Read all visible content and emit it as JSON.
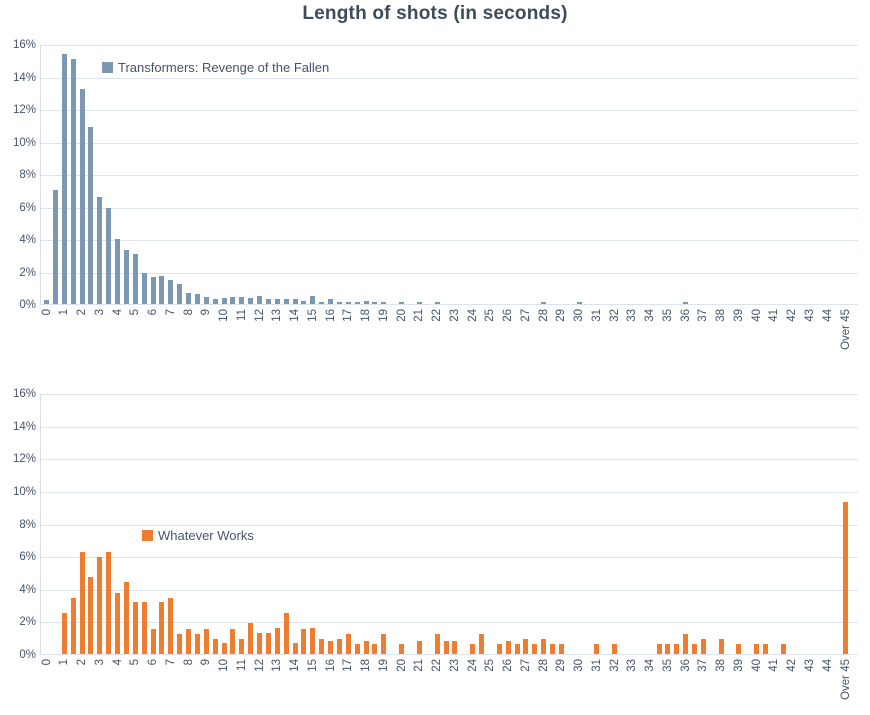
{
  "chart_data": {
    "type": "bar",
    "title": "Length of shots (in seconds)",
    "layout": "two stacked histogram panels sharing identical x and y axes, no panel borders, horizontal gridlines only",
    "x_axis": {
      "unit": "seconds",
      "bin_width_seconds": 0.5,
      "bins_description": "bars at every 0.5 s from 0 to 44.5, plus a final 'Over 45' bar; axis tick labels shown only at whole seconds",
      "tick_labels": [
        "0",
        "1",
        "2",
        "3",
        "4",
        "5",
        "6",
        "7",
        "8",
        "9",
        "10",
        "11",
        "12",
        "13",
        "14",
        "15",
        "16",
        "17",
        "18",
        "19",
        "20",
        "21",
        "22",
        "23",
        "24",
        "25",
        "26",
        "27",
        "28",
        "29",
        "30",
        "31",
        "32",
        "33",
        "34",
        "35",
        "36",
        "37",
        "38",
        "39",
        "40",
        "41",
        "42",
        "43",
        "44",
        "Over 45"
      ],
      "tick_label_rotation_degrees": -90
    },
    "y_axis": {
      "unit": "percent of shots",
      "min": 0,
      "max": 16,
      "tick_step": 2,
      "tick_labels_top_to_bottom": [
        "16%",
        "14%",
        "12%",
        "10%",
        "8%",
        "6%",
        "4%",
        "2%",
        "0%"
      ],
      "grid": true
    },
    "series": [
      {
        "name": "Transformers: Revenge of the Fallen",
        "panel": "top",
        "color": "#7c97b1",
        "legend_position": "inside plot, upper left",
        "values_pct": [
          0.25,
          7,
          15.4,
          15.1,
          13.2,
          10.9,
          6.6,
          5.9,
          4,
          3.3,
          3.1,
          1.9,
          1.65,
          1.7,
          1.5,
          1.2,
          0.65,
          0.6,
          0.45,
          0.3,
          0.35,
          0.45,
          0.45,
          0.35,
          0.5,
          0.3,
          0.3,
          0.3,
          0.3,
          0.2,
          0.5,
          0.15,
          0.3,
          0.1,
          0.15,
          0.15,
          0.2,
          0.1,
          0.15,
          0,
          0.1,
          0,
          0.1,
          0,
          0.1,
          0,
          0,
          0,
          0,
          0,
          0,
          0,
          0,
          0,
          0,
          0,
          0.1,
          0,
          0,
          0,
          0.1,
          0,
          0,
          0,
          0,
          0,
          0,
          0,
          0,
          0,
          0,
          0,
          0.1,
          0,
          0,
          0,
          0,
          0,
          0,
          0,
          0,
          0,
          0,
          0,
          0,
          0,
          0,
          0,
          0,
          0,
          0
        ]
      },
      {
        "name": "Whatever Works",
        "panel": "bottom",
        "color": "#ed7d31",
        "legend_position": "inside plot, left-center",
        "values_pct": [
          0,
          0,
          2.5,
          3.45,
          6.25,
          4.7,
          5.95,
          6.25,
          3.75,
          4.4,
          3.2,
          3.2,
          1.55,
          3.2,
          3.45,
          1.25,
          1.55,
          1.25,
          1.55,
          0.95,
          0.65,
          1.55,
          0.95,
          1.9,
          1.3,
          1.3,
          1.6,
          2.5,
          0.65,
          1.55,
          1.6,
          0.95,
          0.8,
          0.95,
          1.25,
          0.6,
          0.8,
          0.6,
          1.25,
          0,
          0.6,
          0,
          0.8,
          0,
          1.25,
          0.8,
          0.8,
          0,
          0.6,
          1.25,
          0,
          0.6,
          0.8,
          0.6,
          0.95,
          0.6,
          0.9,
          0.6,
          0.6,
          0,
          0,
          0,
          0.6,
          0,
          0.6,
          0,
          0,
          0,
          0,
          0.6,
          0.6,
          0.6,
          1.25,
          0.6,
          0.95,
          0,
          0.95,
          0,
          0.6,
          0,
          0.6,
          0.6,
          0,
          0.6,
          0,
          0,
          0,
          0,
          0,
          0,
          9.3
        ]
      }
    ]
  },
  "colors": {
    "tick_text": "#44546a",
    "title_text": "#3e4b5a",
    "gridline": "#dde3ee",
    "axis_line": "#d6dce8",
    "background": "#ffffff"
  }
}
